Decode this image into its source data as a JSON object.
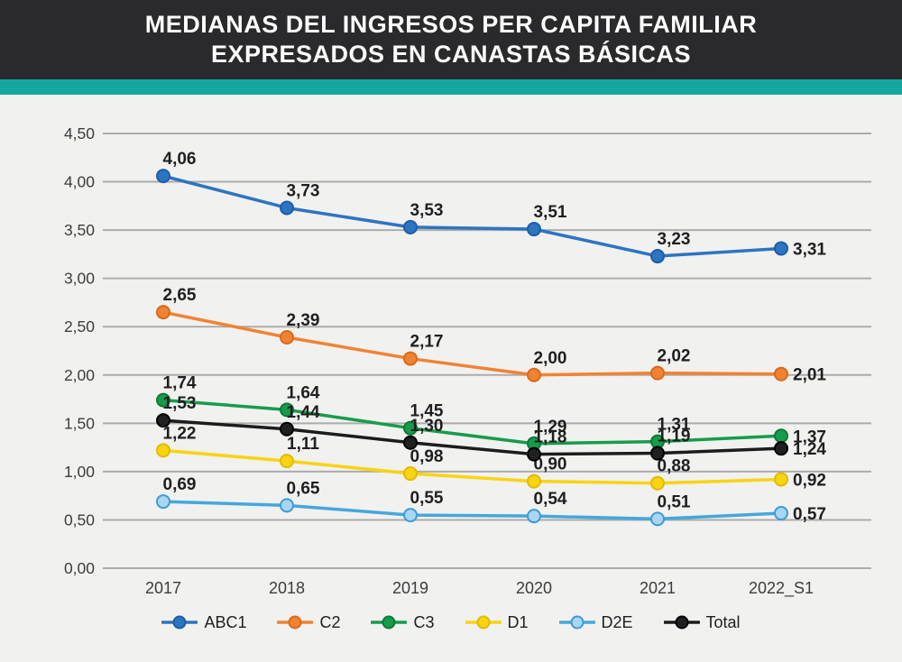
{
  "header": {
    "title_line1": "MEDIANAS DEL INGRESOS PER CAPITA FAMILIAR",
    "title_line2": "EXPRESADOS EN CANASTAS BÁSICAS",
    "banner_color": "#2a2a2c",
    "accent_color": "#15a79f"
  },
  "chart_data": {
    "type": "line",
    "title": "MEDIANAS DEL INGRESOS PER CAPITA FAMILIAR EXPRESADOS EN CANASTAS BÁSICAS",
    "categories": [
      "2017",
      "2018",
      "2019",
      "2020",
      "2021",
      "2022_S1"
    ],
    "series": [
      {
        "name": "ABC1",
        "color": "#2e74c0",
        "marker_fill": "#2e74c0",
        "marker_stroke": "#1c5fa8",
        "values": [
          4.06,
          3.73,
          3.53,
          3.51,
          3.23,
          3.31
        ],
        "labels": [
          "4,06",
          "3,73",
          "3,53",
          "3,51",
          "3,23",
          "3,31"
        ]
      },
      {
        "name": "C2",
        "color": "#f08332",
        "marker_fill": "#f08332",
        "marker_stroke": "#d86a1c",
        "values": [
          2.65,
          2.39,
          2.17,
          2.0,
          2.02,
          2.01
        ],
        "labels": [
          "2,65",
          "2,39",
          "2,17",
          "2,00",
          "2,02",
          "2,01"
        ]
      },
      {
        "name": "C3",
        "color": "#179c4b",
        "marker_fill": "#179c4b",
        "marker_stroke": "#0e7a38",
        "values": [
          1.74,
          1.64,
          1.45,
          1.29,
          1.31,
          1.37
        ],
        "labels": [
          "1,74",
          "1,64",
          "1,45",
          "1,29",
          "1,31",
          "1,37"
        ]
      },
      {
        "name": "D1",
        "color": "#f9d410",
        "marker_fill": "#f9d410",
        "marker_stroke": "#e0bb00",
        "values": [
          1.22,
          1.11,
          0.98,
          0.9,
          0.88,
          0.92
        ],
        "labels": [
          "1,22",
          "1,11",
          "0,98",
          "0,90",
          "0,88",
          "0,92"
        ]
      },
      {
        "name": "D2E",
        "color": "#45a7dd",
        "marker_fill": "#a9d6f0",
        "marker_stroke": "#3e9bd6",
        "values": [
          0.69,
          0.65,
          0.55,
          0.54,
          0.51,
          0.57
        ],
        "labels": [
          "0,69",
          "0,65",
          "0,55",
          "0,54",
          "0,51",
          "0,57"
        ]
      },
      {
        "name": "Total",
        "color": "#1c1c1c",
        "marker_fill": "#202020",
        "marker_stroke": "#000000",
        "values": [
          1.53,
          1.44,
          1.3,
          1.18,
          1.19,
          1.24
        ],
        "labels": [
          "1,53",
          "1,44",
          "1,30",
          "1,18",
          "1,19",
          "1,24"
        ]
      }
    ],
    "y_ticks": [
      "4,50",
      "4,00",
      "3,50",
      "3,00",
      "2,50",
      "2,00",
      "1,50",
      "1,00",
      "0,50",
      "0,00"
    ],
    "ylim": [
      0,
      4.5
    ],
    "xlabel": "",
    "ylabel": "",
    "grid": true,
    "legend_position": "bottom",
    "styles": {
      "background": "#f1f1f0",
      "gridline_color": "#acacac",
      "tick_label_color": "#3c3c3c",
      "data_label_color": "#1f1f1f"
    }
  }
}
